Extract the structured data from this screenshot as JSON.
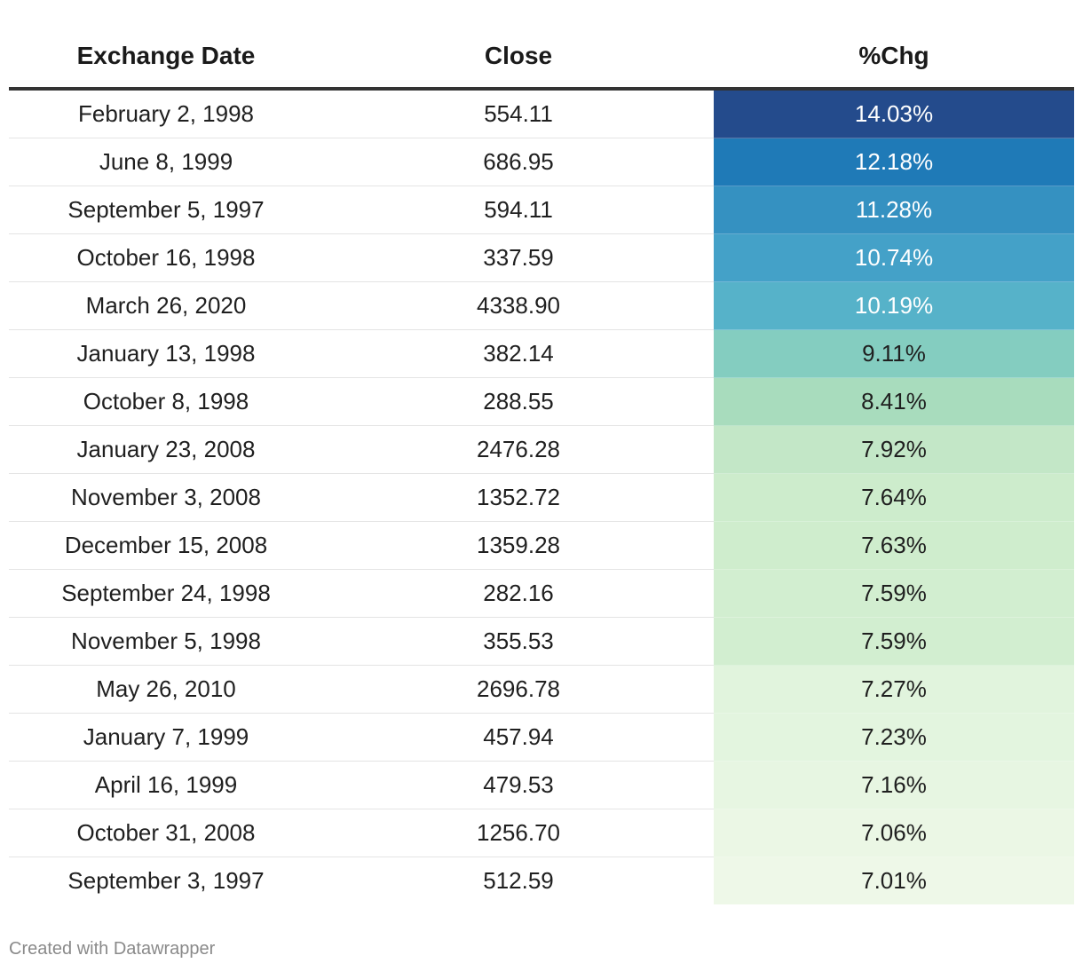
{
  "chart_data": {
    "type": "table",
    "columns": [
      "Exchange Date",
      "Close",
      "%Chg"
    ],
    "rows": [
      {
        "date": "February 2, 1998",
        "close": "554.11",
        "chg": "14.03%",
        "chg_value": 14.03,
        "bg": "#244b8c",
        "fg": "#ffffff"
      },
      {
        "date": "June 8, 1999",
        "close": "686.95",
        "chg": "12.18%",
        "chg_value": 12.18,
        "bg": "#1f7ab7",
        "fg": "#ffffff"
      },
      {
        "date": "September 5, 1997",
        "close": "594.11",
        "chg": "11.28%",
        "chg_value": 11.28,
        "bg": "#3591c1",
        "fg": "#ffffff"
      },
      {
        "date": "October 16, 1998",
        "close": "337.59",
        "chg": "10.74%",
        "chg_value": 10.74,
        "bg": "#44a1c8",
        "fg": "#ffffff"
      },
      {
        "date": "March 26, 2020",
        "close": "4338.90",
        "chg": "10.19%",
        "chg_value": 10.19,
        "bg": "#56b2c9",
        "fg": "#ffffff"
      },
      {
        "date": "January 13, 1998",
        "close": "382.14",
        "chg": "9.11%",
        "chg_value": 9.11,
        "bg": "#84cdc0",
        "fg": "#1f1f1f"
      },
      {
        "date": "October 8, 1998",
        "close": "288.55",
        "chg": "8.41%",
        "chg_value": 8.41,
        "bg": "#a8dcbd",
        "fg": "#1f1f1f"
      },
      {
        "date": "January 23, 2008",
        "close": "2476.28",
        "chg": "7.92%",
        "chg_value": 7.92,
        "bg": "#c3e7c7",
        "fg": "#1f1f1f"
      },
      {
        "date": "November 3, 2008",
        "close": "1352.72",
        "chg": "7.64%",
        "chg_value": 7.64,
        "bg": "#cdeccc",
        "fg": "#1f1f1f"
      },
      {
        "date": "December 15, 2008",
        "close": "1359.28",
        "chg": "7.63%",
        "chg_value": 7.63,
        "bg": "#cfedcd",
        "fg": "#1f1f1f"
      },
      {
        "date": "September 24, 1998",
        "close": "282.16",
        "chg": "7.59%",
        "chg_value": 7.59,
        "bg": "#d2eed0",
        "fg": "#1f1f1f"
      },
      {
        "date": "November 5, 1998",
        "close": "355.53",
        "chg": "7.59%",
        "chg_value": 7.59,
        "bg": "#d2eed0",
        "fg": "#1f1f1f"
      },
      {
        "date": "May 26, 2010",
        "close": "2696.78",
        "chg": "7.27%",
        "chg_value": 7.27,
        "bg": "#e1f4dd",
        "fg": "#1f1f1f"
      },
      {
        "date": "January 7, 1999",
        "close": "457.94",
        "chg": "7.23%",
        "chg_value": 7.23,
        "bg": "#e3f5df",
        "fg": "#1f1f1f"
      },
      {
        "date": "April 16, 1999",
        "close": "479.53",
        "chg": "7.16%",
        "chg_value": 7.16,
        "bg": "#e7f6e2",
        "fg": "#1f1f1f"
      },
      {
        "date": "October 31, 2008",
        "close": "1256.70",
        "chg": "7.06%",
        "chg_value": 7.06,
        "bg": "#ebf7e5",
        "fg": "#1f1f1f"
      },
      {
        "date": "September 3, 1997",
        "close": "512.59",
        "chg": "7.01%",
        "chg_value": 7.01,
        "bg": "#eef8e8",
        "fg": "#1f1f1f"
      }
    ]
  },
  "footer": {
    "credit": "Created with Datawrapper"
  }
}
